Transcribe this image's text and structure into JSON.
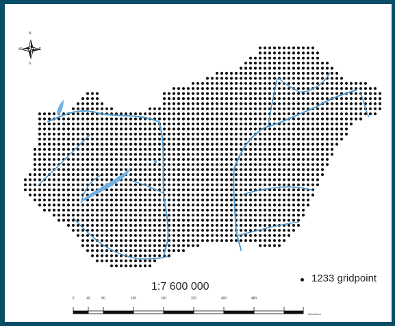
{
  "map": {
    "scale_label": "1:7 600 000",
    "legend": {
      "label": "1233 gridpoint"
    },
    "scale_bar": {
      "ticks": [
        "0",
        "40",
        "80",
        "160",
        "240",
        "320",
        "400",
        "480"
      ],
      "unit": "Kilometers"
    },
    "compass": {
      "n": "N",
      "e": "E",
      "s": "S",
      "w": "W"
    },
    "colors": {
      "frame": "#0a4d66",
      "background": "#ffffff",
      "gridpoint": "#111111",
      "rivers": "#4a9ad4",
      "lake": "#6fb3e6"
    }
  }
}
